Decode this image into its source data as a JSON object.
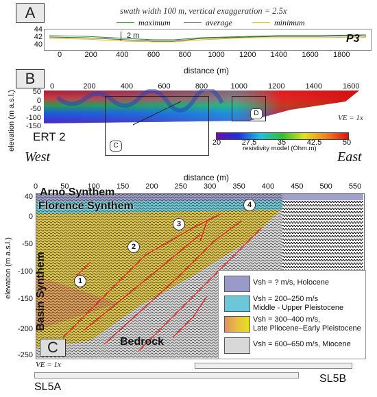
{
  "panel_a": {
    "label": "A",
    "caption": "swath width 100 m, vertical exaggeration = 2.5x",
    "legend": [
      "maximum",
      "average",
      "minimum"
    ],
    "y_ticks": [
      "44",
      "42",
      "40"
    ],
    "x_ticks": [
      "0",
      "200",
      "400",
      "600",
      "800",
      "1000",
      "1200",
      "1400",
      "1600",
      "1800"
    ],
    "scale_note": "2 m",
    "profile": "P3",
    "xlabel": "distance (m)"
  },
  "panel_b": {
    "label": "B",
    "x_ticks": [
      "0",
      "200",
      "400",
      "600",
      "800",
      "1000",
      "1200",
      "1400",
      "1600"
    ],
    "y_ticks": [
      "50",
      "0",
      "-50",
      "-100",
      "-150"
    ],
    "ylabel": "elevation (m a.s.l.)",
    "ert_label": "ERT 2",
    "ve": "VE = 1x",
    "inset_c": "C",
    "inset_d": "D",
    "colorbar_ticks": [
      "20",
      "27.5",
      "35",
      "42.5",
      "50"
    ],
    "colorbar_label": "resistivity model (Ohm.m)",
    "west": "West",
    "east": "East"
  },
  "panel_c": {
    "label": "C",
    "xlabel": "distance (m)",
    "x_ticks": [
      "0",
      "50",
      "100",
      "150",
      "200",
      "250",
      "300",
      "350",
      "400",
      "450",
      "500",
      "550"
    ],
    "y_ticks": [
      "40",
      "0",
      "-50",
      "-100",
      "-150",
      "-200",
      "-250"
    ],
    "ylabel": "elevation (m a.s.l.)",
    "units": [
      "Arno Synthem",
      "Florence Synthem",
      "Basin Synthem",
      "Bedrock"
    ],
    "markers": [
      "1",
      "2",
      "3",
      "4"
    ],
    "ve": "VE = 1x",
    "legend": [
      {
        "line1": "Vsh = ? m/s, Holocene",
        "line2": "",
        "color": "#9a9ac8"
      },
      {
        "line1": "Vsh = 200–250 m/s",
        "line2": "Middle - Upper Pleistocene",
        "color": "#6cc8d8"
      },
      {
        "line1": "Vsh = 300–400 m/s,",
        "line2": "Late Pliocene–Early Pleistocene",
        "color": "#e8c040"
      },
      {
        "line1": "Vsh = 600–650 m/s, Miocene",
        "line2": "",
        "color": "#d8d8d8"
      }
    ],
    "lines": [
      "SL5A",
      "SL5B"
    ]
  }
}
